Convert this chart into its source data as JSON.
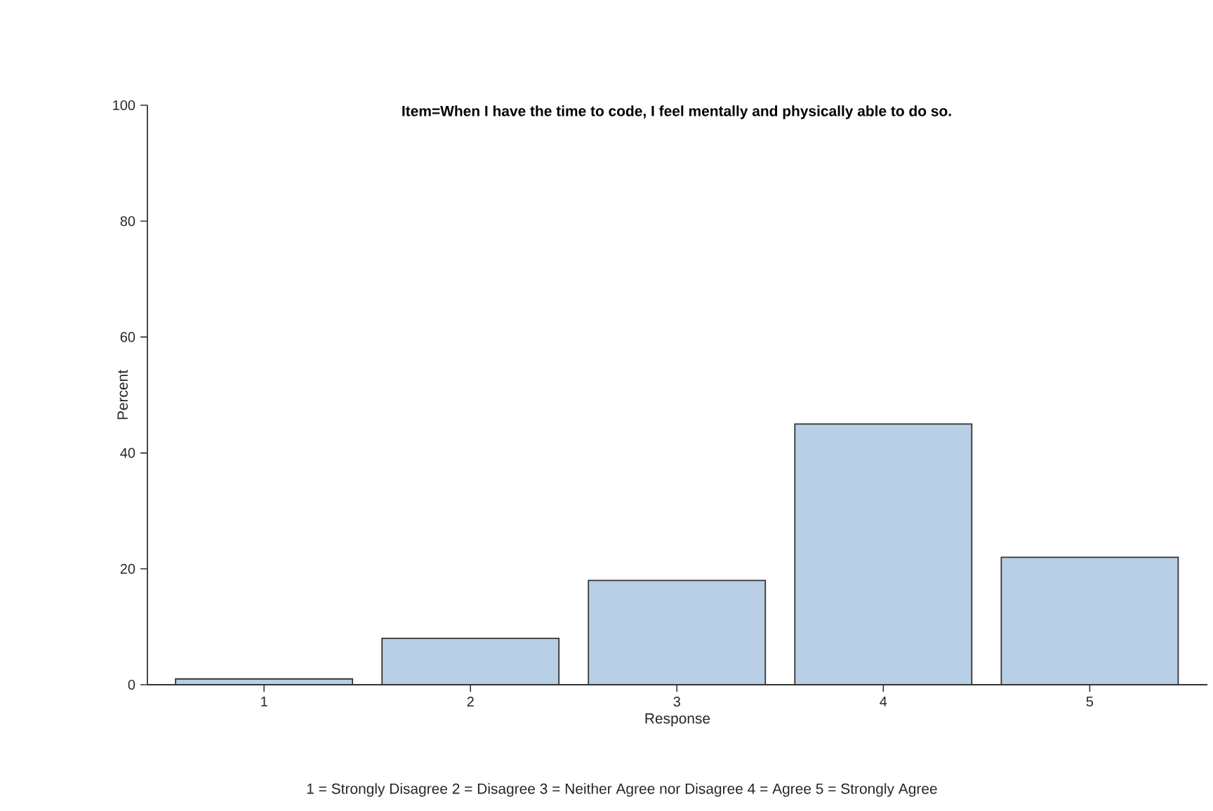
{
  "chart_data": {
    "type": "bar",
    "title": "Item=When I have the time to code, I feel mentally and physically able to do so.",
    "xlabel": "Response",
    "ylabel": "Percent",
    "categories": [
      "1",
      "2",
      "3",
      "4",
      "5"
    ],
    "values": [
      1,
      8,
      18,
      45,
      22
    ],
    "color": "#b9cfe6",
    "ylim": [
      0,
      100
    ],
    "yticks": [
      0,
      20,
      40,
      60,
      80,
      100
    ],
    "annotations": [
      "1 = Strongly Disagree 2 = Disagree 3 = Neither Agree nor Disagree 4 = Agree 5 = Strongly Agree"
    ]
  }
}
